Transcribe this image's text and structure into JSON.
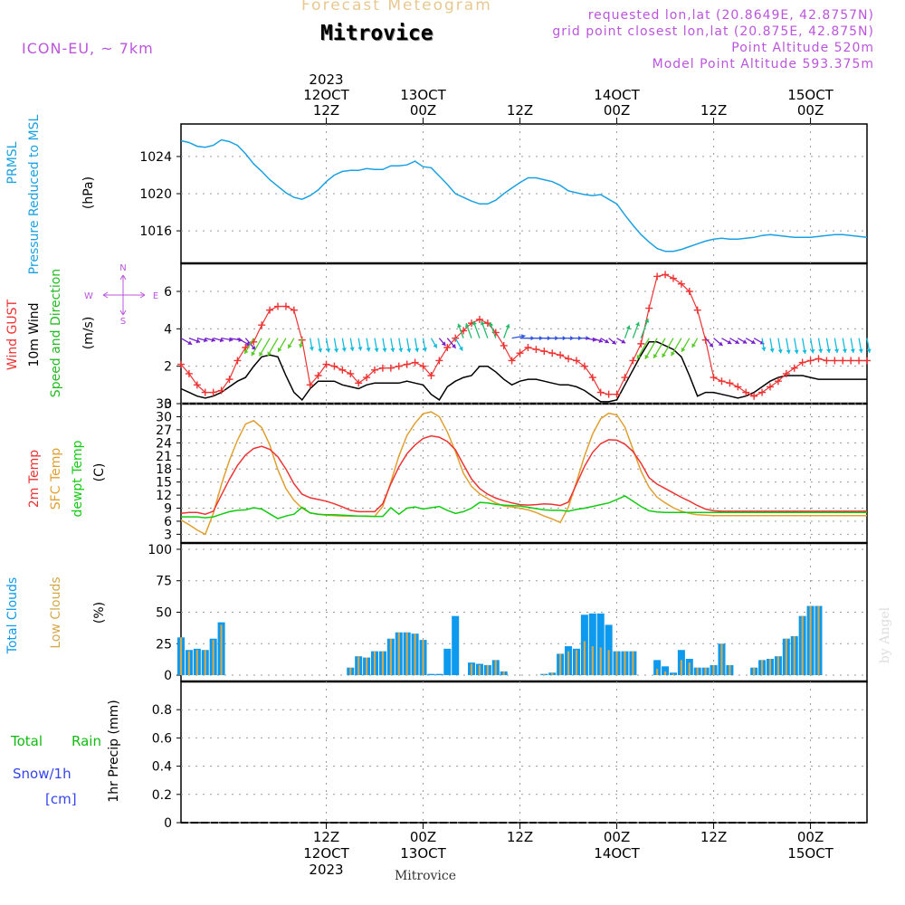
{
  "header": {
    "title": "Forecast Meteogram",
    "location": "Mitrovice",
    "model": "ICON-EU, ~ 7km",
    "requested": "requested lon,lat (20.8649E, 42.8757N)",
    "grid_point": "grid point closest lon,lat (20.875E, 42.875N)",
    "point_altitude": "Point Altitude 520m",
    "model_altitude": "Model Point Altitude 593.375m",
    "footer_location": "Mitrovice",
    "watermark": "by Angel"
  },
  "colors": {
    "pressure": "#1ba1e2",
    "gust": "#ee3333",
    "wind": "#000000",
    "wind_dir": "#22bb22",
    "temp2m": "#ee3333",
    "sfc_temp": "#e0a030",
    "dewpt": "#11cc11",
    "total_clouds": "#0d99ee",
    "low_clouds": "#d4a84a",
    "rain": "#11bb11",
    "snow": "#3344ee",
    "header_purple": "#bb55dd",
    "title_tan": "#e8c890"
  },
  "chart_data": {
    "type": "line",
    "time_axis": {
      "start": "2023-10-11 18Z",
      "end": "2023-10-15 06Z",
      "step_hours": 1,
      "top_ticks": [
        {
          "hour": 18,
          "lines": [
            "2023",
            "12OCT",
            "12Z"
          ]
        },
        {
          "hour": 30,
          "lines": [
            "13OCT",
            "00Z"
          ]
        },
        {
          "hour": 42,
          "lines": [
            "12Z"
          ]
        },
        {
          "hour": 54,
          "lines": [
            "14OCT",
            "00Z"
          ]
        },
        {
          "hour": 66,
          "lines": [
            "12Z"
          ]
        },
        {
          "hour": 78,
          "lines": [
            "15OCT",
            "00Z"
          ]
        }
      ],
      "bottom_ticks": [
        {
          "hour": 18,
          "lines": [
            "12Z",
            "12OCT",
            "2023"
          ]
        },
        {
          "hour": 30,
          "lines": [
            "00Z",
            "13OCT"
          ]
        },
        {
          "hour": 42,
          "lines": [
            "12Z"
          ]
        },
        {
          "hour": 54,
          "lines": [
            "00Z",
            "14OCT"
          ]
        },
        {
          "hour": 66,
          "lines": [
            "12Z"
          ]
        },
        {
          "hour": 78,
          "lines": [
            "00Z",
            "15OCT"
          ]
        }
      ]
    },
    "pressure": {
      "labels": [
        "PRMSL",
        "Pressure Reduced to MSL"
      ],
      "unit": "(hPa)",
      "ylim": [
        1012.5,
        1027.5
      ],
      "yticks": [
        1016,
        1020,
        1024
      ],
      "x": [
        0,
        1,
        2,
        3,
        4,
        5,
        6,
        7,
        8,
        9,
        10,
        11,
        12,
        13,
        14,
        15,
        16,
        17,
        18,
        19,
        20,
        21,
        22,
        23,
        24,
        25,
        26,
        27,
        28,
        29,
        30,
        31,
        32,
        33,
        34,
        35,
        36,
        37,
        38,
        39,
        40,
        41,
        42,
        43,
        44,
        45,
        46,
        47,
        48,
        49,
        50,
        51,
        52,
        53,
        54,
        55,
        56,
        57,
        58,
        59,
        60,
        61,
        62,
        63,
        64,
        65,
        66,
        67,
        68,
        69,
        70,
        71,
        72,
        73,
        74,
        75,
        76,
        77,
        78,
        79,
        80,
        81,
        82,
        83,
        84,
        85
      ],
      "values": [
        1025.7,
        1025.5,
        1025.1,
        1025,
        1025.2,
        1025.8,
        1025.6,
        1025.2,
        1024.3,
        1023.2,
        1022.4,
        1021.5,
        1020.8,
        1020.1,
        1019.6,
        1019.4,
        1019.8,
        1020.4,
        1021.3,
        1022,
        1022.4,
        1022.5,
        1022.5,
        1022.7,
        1022.6,
        1022.6,
        1023,
        1023,
        1023.1,
        1023.5,
        1022.9,
        1022.8,
        1021.9,
        1021,
        1020,
        1019.6,
        1019.2,
        1018.9,
        1018.9,
        1019.3,
        1020,
        1020.6,
        1021.2,
        1021.7,
        1021.7,
        1021.5,
        1021.3,
        1020.9,
        1020.3,
        1020.1,
        1019.9,
        1019.8,
        1019.9,
        1019.4,
        1018.9,
        1017.7,
        1016.6,
        1015.6,
        1014.8,
        1014.1,
        1013.8,
        1013.8,
        1014,
        1014.3,
        1014.6,
        1014.9,
        1015.1,
        1015.2,
        1015.1,
        1015.1,
        1015.2,
        1015.3,
        1015.5,
        1015.6,
        1015.5,
        1015.4,
        1015.3,
        1015.3,
        1015.3,
        1015.4,
        1015.5,
        1015.6,
        1015.6,
        1015.5,
        1015.4,
        1015.3
      ]
    },
    "wind": {
      "labels": [
        "Wind GUST",
        "10m Wind",
        "Speed and Direction"
      ],
      "unit": "(m/s)",
      "ylim": [
        0,
        7.5
      ],
      "yticks": [
        0,
        2,
        4,
        6
      ],
      "compass": {
        "n": "N",
        "s": "S",
        "w": "W",
        "e": "E"
      },
      "x": [
        0,
        1,
        2,
        3,
        4,
        5,
        6,
        7,
        8,
        9,
        10,
        11,
        12,
        13,
        14,
        15,
        16,
        17,
        18,
        19,
        20,
        21,
        22,
        23,
        24,
        25,
        26,
        27,
        28,
        29,
        30,
        31,
        32,
        33,
        34,
        35,
        36,
        37,
        38,
        39,
        40,
        41,
        42,
        43,
        44,
        45,
        46,
        47,
        48,
        49,
        50,
        51,
        52,
        53,
        54,
        55,
        56,
        57,
        58,
        59,
        60,
        61,
        62,
        63,
        64,
        65,
        66,
        67,
        68,
        69,
        70,
        71,
        72,
        73,
        74,
        75,
        76,
        77,
        78,
        79,
        80,
        81,
        82,
        83,
        84,
        85
      ],
      "gust": [
        2.1,
        1.6,
        1,
        0.6,
        0.6,
        0.7,
        1.3,
        2.3,
        3,
        3.3,
        4.2,
        5,
        5.2,
        5.2,
        5,
        3.4,
        1,
        1.5,
        2.1,
        2,
        1.8,
        1.6,
        1.1,
        1.4,
        1.8,
        1.9,
        1.9,
        2,
        2.1,
        2.2,
        2,
        1.5,
        2.3,
        3,
        3.5,
        3.9,
        4.3,
        4.5,
        4.3,
        3.8,
        3.1,
        2.3,
        2.7,
        3,
        2.9,
        2.8,
        2.7,
        2.6,
        2.4,
        2.3,
        2,
        1.4,
        0.6,
        0.5,
        0.5,
        1.4,
        2.3,
        3.2,
        5.1,
        6.8,
        6.9,
        6.7,
        6.4,
        6,
        5,
        3.4,
        1.4,
        1.2,
        1.1,
        0.9,
        0.6,
        0.4,
        0.6,
        0.9,
        1.2,
        1.6,
        1.9,
        2.2,
        2.3,
        2.4,
        2.3,
        2.3,
        2.3,
        2.3,
        2.3,
        2.3
      ],
      "speed": [
        0.8,
        0.6,
        0.4,
        0.3,
        0.4,
        0.6,
        0.9,
        1.2,
        1.4,
        2,
        2.5,
        2.6,
        2.5,
        1.5,
        0.6,
        0.2,
        0.8,
        1.2,
        1.2,
        1.2,
        1,
        0.9,
        0.8,
        1,
        1.1,
        1.1,
        1.1,
        1.1,
        1.2,
        1.1,
        1,
        0.5,
        0.2,
        0.9,
        1.2,
        1.4,
        1.5,
        2,
        2,
        1.7,
        1.3,
        1,
        1.2,
        1.3,
        1.3,
        1.2,
        1.1,
        1,
        1,
        0.9,
        0.7,
        0.4,
        0.1,
        0.1,
        0.2,
        1,
        1.8,
        2.6,
        3.3,
        3.3,
        3.1,
        2.9,
        2.5,
        1.5,
        0.4,
        0.6,
        0.6,
        0.5,
        0.4,
        0.3,
        0.4,
        0.6,
        0.9,
        1.2,
        1.4,
        1.5,
        1.5,
        1.5,
        1.4,
        1.3,
        1.3,
        1.3,
        1.3,
        1.3,
        1.3,
        1.3
      ],
      "direction_deg": [
        300,
        290,
        285,
        285,
        285,
        280,
        280,
        300,
        320,
        30,
        30,
        30,
        30,
        30,
        30,
        10,
        350,
        350,
        350,
        350,
        350,
        350,
        350,
        350,
        350,
        350,
        350,
        350,
        350,
        350,
        350,
        330,
        320,
        320,
        330,
        160,
        160,
        160,
        160,
        160,
        200,
        260,
        270,
        270,
        270,
        270,
        270,
        270,
        270,
        270,
        280,
        290,
        300,
        310,
        300,
        200,
        200,
        200,
        30,
        30,
        30,
        30,
        30,
        30,
        30,
        320,
        310,
        300,
        300,
        300,
        300,
        300,
        350,
        350,
        350,
        350,
        350,
        350,
        350,
        350,
        350,
        350,
        350,
        350,
        350,
        350
      ]
    },
    "temperature": {
      "labels": [
        "2m Temp",
        "SFC Temp",
        "dewpt Temp"
      ],
      "unit": "(C)",
      "ylim": [
        1,
        33
      ],
      "yticks": [
        3,
        6,
        9,
        12,
        15,
        18,
        21,
        24,
        27,
        30,
        33
      ],
      "x": [
        0,
        1,
        2,
        3,
        4,
        5,
        6,
        7,
        8,
        9,
        10,
        11,
        12,
        13,
        14,
        15,
        16,
        17,
        18,
        19,
        20,
        21,
        22,
        23,
        24,
        25,
        26,
        27,
        28,
        29,
        30,
        31,
        32,
        33,
        34,
        35,
        36,
        37,
        38,
        39,
        40,
        41,
        42,
        43,
        44,
        45,
        46,
        47,
        48,
        49,
        50,
        51,
        52,
        53,
        54,
        55,
        56,
        57,
        58,
        59,
        60,
        61,
        62,
        63,
        64,
        65,
        66,
        67,
        68,
        69,
        70,
        71,
        72,
        73,
        74,
        75,
        76,
        77,
        78,
        79,
        80,
        81,
        82,
        83,
        84,
        85
      ],
      "t2m": [
        7.8,
        8,
        8,
        7.6,
        8.3,
        12,
        15.6,
        18.8,
        21.2,
        22.7,
        23.2,
        22.5,
        20.8,
        18,
        14.6,
        12.2,
        11.4,
        11,
        10.6,
        10,
        9.3,
        8.5,
        8.2,
        8.2,
        8.2,
        10,
        14.6,
        18.5,
        21.5,
        23.5,
        25,
        25.6,
        25.3,
        24.3,
        22.4,
        19,
        15.7,
        13.5,
        12.2,
        11.3,
        10.7,
        10.2,
        9.8,
        9.7,
        9.8,
        10,
        9.9,
        9.6,
        10.4,
        14.5,
        18.6,
        21.8,
        23.8,
        24.7,
        24.6,
        23.7,
        22,
        19.3,
        16,
        14.5,
        13.5,
        12.5,
        11.5,
        10.6,
        9.6,
        8.8,
        8.4,
        8.3,
        8.3,
        8.3,
        8.3,
        8.3,
        8.3,
        8.3,
        8.3,
        8.3,
        8.3,
        8.3,
        8.3,
        8.3,
        8.3,
        8.3,
        8.3,
        8.3,
        8.3,
        8.3
      ],
      "sfc": [
        6.3,
        5.2,
        4,
        3,
        7.8,
        14.4,
        20,
        24.6,
        28.3,
        29.1,
        27.5,
        23.5,
        17.8,
        13.5,
        10.8,
        9,
        7.9,
        7.6,
        7.4,
        7.3,
        7.2,
        7.2,
        7.2,
        7.1,
        7.1,
        9.4,
        15,
        21,
        25.7,
        28.5,
        30.7,
        31.1,
        30,
        26.5,
        22,
        17,
        14,
        12.3,
        11.2,
        10.2,
        9.5,
        9.3,
        9,
        8.6,
        8,
        7.2,
        6.5,
        5.7,
        9.2,
        15,
        21,
        26,
        29.5,
        30.8,
        30.4,
        27.6,
        22.5,
        17.5,
        13.8,
        11.5,
        10.2,
        9.1,
        8.3,
        7.8,
        7.5,
        7.4,
        7.3,
        7.3,
        7.3,
        7.3,
        7.3,
        7.3,
        7.3,
        7.3,
        7.3,
        7.3,
        7.3,
        7.3,
        7.3,
        7.3,
        7.3,
        7.3,
        7.3,
        7.3,
        7.3,
        7.3
      ],
      "dewpt": [
        7,
        7,
        7,
        6.8,
        7,
        7.6,
        8.2,
        8.5,
        8.6,
        9.1,
        8.8,
        7.7,
        6.6,
        7.2,
        7.6,
        9.2,
        7.9,
        7.6,
        7.5,
        7.5,
        7.4,
        7.3,
        7.2,
        7.2,
        7.1,
        7.1,
        9.1,
        7.6,
        9,
        9.3,
        8.8,
        9.1,
        9.4,
        8.5,
        7.8,
        8.2,
        9,
        10.3,
        10.2,
        9.9,
        9.7,
        9.6,
        9.5,
        9.2,
        8.9,
        8.6,
        8.5,
        8.5,
        8.3,
        8.7,
        9,
        9.4,
        9.8,
        10.2,
        11,
        11.8,
        10.6,
        9.4,
        8.4,
        8.1,
        8,
        8,
        8,
        8,
        8,
        8,
        8,
        8,
        8,
        8,
        8,
        8,
        8,
        8,
        8,
        8,
        8,
        8,
        8,
        8,
        8,
        8,
        8,
        8,
        8,
        8
      ]
    },
    "clouds": {
      "labels": [
        "Total Clouds",
        "Low Clouds"
      ],
      "unit": "(%)",
      "ylim": [
        -5,
        105
      ],
      "yticks": [
        0,
        25,
        50,
        75,
        100
      ],
      "x": [
        0,
        1,
        2,
        3,
        4,
        5,
        6,
        7,
        8,
        9,
        10,
        11,
        12,
        13,
        14,
        15,
        16,
        17,
        18,
        19,
        20,
        21,
        22,
        23,
        24,
        25,
        26,
        27,
        28,
        29,
        30,
        31,
        32,
        33,
        34,
        35,
        36,
        37,
        38,
        39,
        40,
        41,
        42,
        43,
        44,
        45,
        46,
        47,
        48,
        49,
        50,
        51,
        52,
        53,
        54,
        55,
        56,
        57,
        58,
        59,
        60,
        61,
        62,
        63,
        64,
        65,
        66,
        67,
        68,
        69,
        70,
        71,
        72,
        73,
        74,
        75,
        76,
        77,
        78,
        79,
        80,
        81,
        82,
        83,
        84,
        85
      ],
      "total": [
        30,
        20,
        21,
        20,
        29,
        42,
        0,
        0,
        0,
        0,
        0,
        0,
        0,
        0,
        0,
        0,
        0,
        0,
        0,
        0,
        0,
        6,
        15,
        14,
        19,
        19,
        29,
        34,
        34,
        33,
        28,
        1,
        1,
        21,
        47,
        0,
        10,
        9,
        8,
        12,
        3,
        0,
        0,
        0,
        0,
        1,
        2,
        17,
        23,
        21,
        48,
        49,
        49,
        40,
        19,
        19,
        19,
        0,
        0,
        12,
        7,
        2,
        20,
        13,
        6,
        6,
        8,
        25,
        8,
        0,
        0,
        6,
        12,
        13,
        15,
        29,
        31,
        47,
        55,
        55,
        0,
        0,
        0,
        0,
        0,
        0
      ],
      "low": [
        30,
        19,
        20,
        20,
        28,
        40,
        0,
        0,
        0,
        0,
        0,
        0,
        0,
        0,
        0,
        0,
        0,
        0,
        0,
        0,
        0,
        6,
        15,
        14,
        19,
        19,
        29,
        34,
        34,
        33,
        28,
        0,
        0,
        0,
        0,
        0,
        9,
        8,
        8,
        12,
        3,
        0,
        0,
        0,
        0,
        1,
        2,
        17,
        19,
        20,
        27,
        23,
        22,
        20,
        19,
        19,
        19,
        0,
        0,
        5,
        3,
        1,
        12,
        10,
        6,
        6,
        8,
        25,
        8,
        0,
        0,
        6,
        12,
        13,
        15,
        29,
        31,
        47,
        55,
        55,
        0,
        0,
        0,
        0,
        0,
        0
      ]
    },
    "precip": {
      "labels": [
        "Total",
        "Rain",
        "Snow/1h",
        "[cm]"
      ],
      "unit": "1hr Precip (mm)",
      "ylim": [
        0,
        1
      ],
      "yticks": [
        0,
        0.2,
        0.4,
        0.6,
        0.8
      ],
      "ytick_labels": [
        "0",
        "0.2",
        "0.4",
        "0.6",
        "0.8"
      ],
      "values": []
    }
  }
}
